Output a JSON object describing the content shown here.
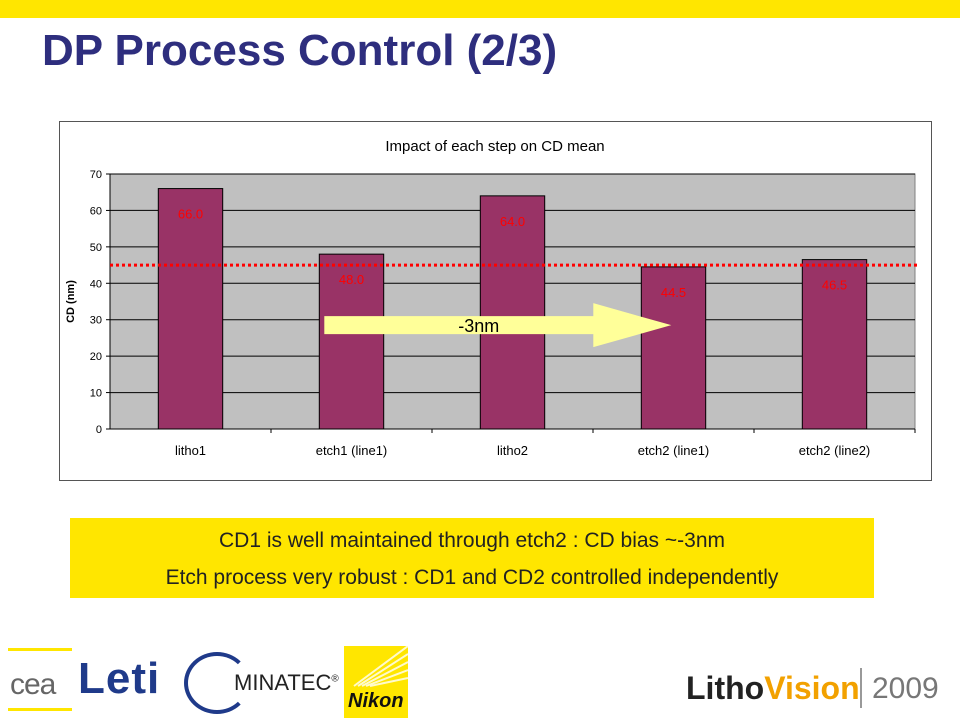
{
  "slide": {
    "title": "DP Process Control (2/3)"
  },
  "callout": {
    "line1": "CD1 is well maintained through etch2 : CD bias ~-3nm",
    "line2": "Etch process very robust :  CD1 and CD2 controlled independently"
  },
  "footer": {
    "cea": "cea",
    "leti": "Leti",
    "minatec": "MINATEC",
    "minatec_mark": "®",
    "nikon": "Nikon",
    "lithovision_a": "Litho",
    "lithovision_b": "Vision",
    "year": "2009"
  },
  "colors": {
    "bar": "#993366",
    "plot_bg": "#C0C0C0",
    "label": "#FF0000",
    "arrow": "#FFFF99",
    "accent": "#FFE600",
    "title": "#2E2E7E"
  },
  "chart_data": {
    "type": "bar",
    "title": "Impact of each step on CD mean",
    "ylabel": "CD (nm)",
    "xlabel": "",
    "categories": [
      "litho1",
      "etch1 (line1)",
      "litho2",
      "etch2 (line1)",
      "etch2 (line2)"
    ],
    "values": [
      66.0,
      48.0,
      64.0,
      44.5,
      46.5
    ],
    "data_labels": [
      "66.0",
      "48.0",
      "64.0",
      "44.5",
      "46.5"
    ],
    "ylim": [
      0,
      70
    ],
    "yticks": [
      0,
      10,
      20,
      30,
      40,
      50,
      60,
      70
    ],
    "grid": true,
    "reference_line": 45,
    "annotation": "-3nm"
  }
}
